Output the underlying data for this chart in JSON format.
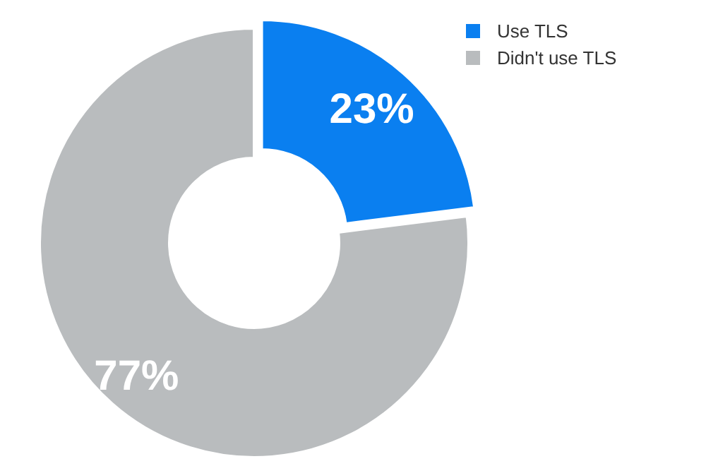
{
  "chart_data": {
    "type": "donut",
    "categories": [
      "Use TLS",
      "Didn't use TLS"
    ],
    "values": [
      23,
      77
    ],
    "colors": [
      "#0a7ff0",
      "#b9bcbe"
    ],
    "value_labels": [
      "23%",
      "77%"
    ],
    "legend": "top right"
  }
}
